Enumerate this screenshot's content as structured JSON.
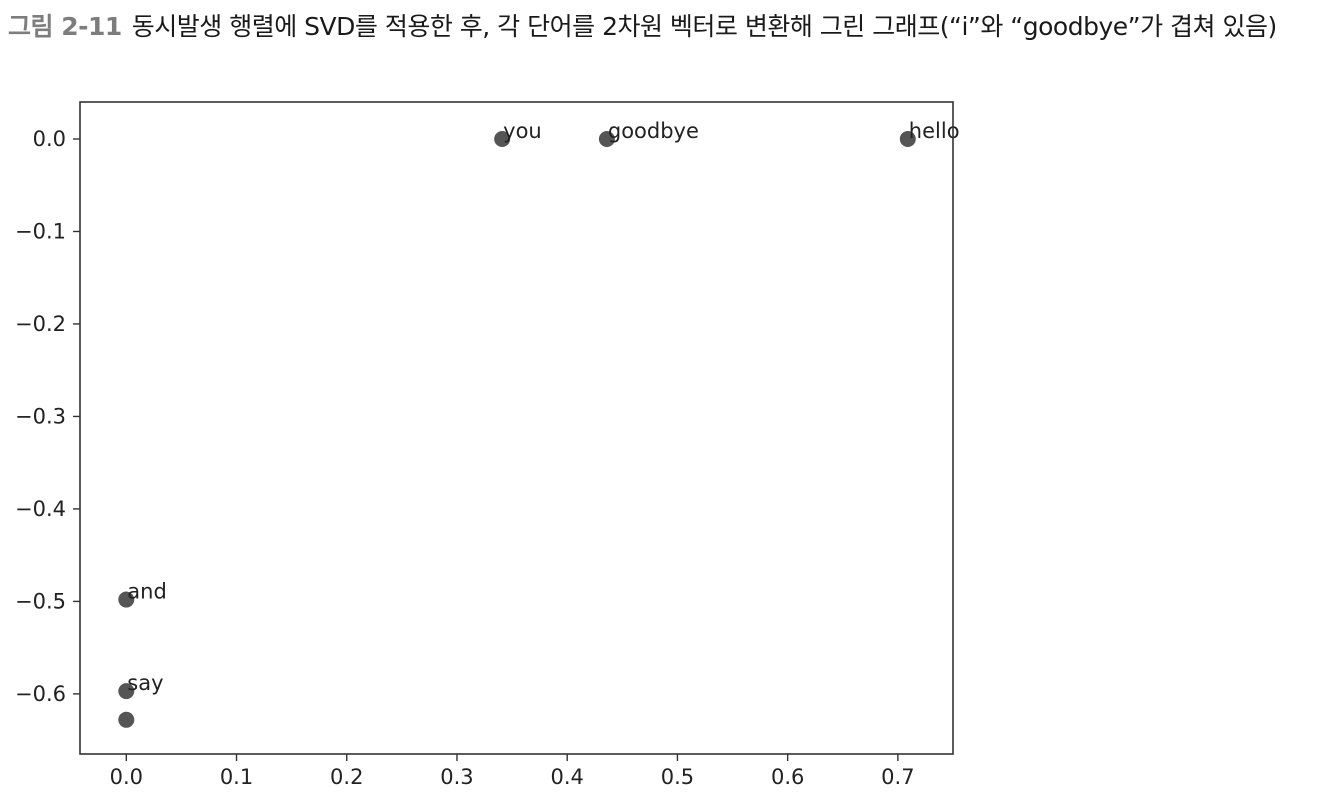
{
  "caption": {
    "figure_no": "그림 2-11",
    "text": "동시발생 행렬에 SVD를 적용한 후, 각 단어를 2차원 벡터로 변환해 그린 그래프(“i”와 “goodbye”가 겹쳐 있음)"
  },
  "chart_data": {
    "type": "scatter",
    "title": "",
    "xlabel": "",
    "ylabel": "",
    "xlim": [
      -0.042,
      0.75
    ],
    "ylim": [
      -0.665,
      0.04
    ],
    "xticks": [
      0.0,
      0.1,
      0.2,
      0.3,
      0.4,
      0.5,
      0.6,
      0.7
    ],
    "xtick_labels": [
      "0.0",
      "0.1",
      "0.2",
      "0.3",
      "0.4",
      "0.5",
      "0.6",
      "0.7"
    ],
    "yticks": [
      0.0,
      -0.1,
      -0.2,
      -0.3,
      -0.4,
      -0.5,
      -0.6
    ],
    "ytick_labels": [
      "0.0",
      "−0.1",
      "−0.2",
      "−0.3",
      "−0.4",
      "−0.5",
      "−0.6"
    ],
    "grid": false,
    "marker_color": "#555555",
    "points": [
      {
        "label": "you",
        "x": 0.341,
        "y": 0.0
      },
      {
        "label": "goodbye",
        "x": 0.436,
        "y": 0.0
      },
      {
        "label": "hello",
        "x": 0.709,
        "y": 0.0
      },
      {
        "label": "and",
        "x": 0.0,
        "y": -0.498
      },
      {
        "label": "say",
        "x": 0.0,
        "y": -0.597
      },
      {
        "label": "",
        "x": 0.0,
        "y": -0.628
      }
    ]
  }
}
